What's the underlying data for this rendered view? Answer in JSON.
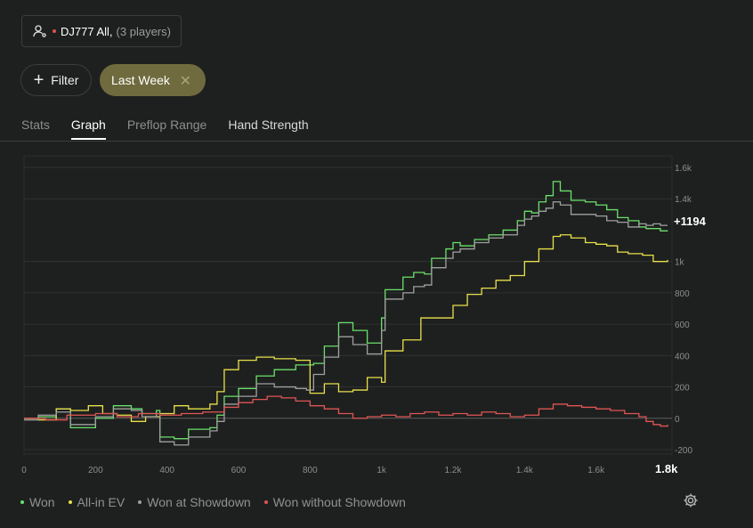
{
  "player": {
    "name": "DJ777 All,",
    "count": "(3 players)",
    "icon": "user-settings-icon",
    "dot_color": "#d9534f"
  },
  "filter": {
    "plus": "+",
    "label": "Filter"
  },
  "date_chip": {
    "label": "Last Week",
    "close": "✕",
    "color": "#6f6b3e"
  },
  "tabs": [
    "Stats",
    "Graph",
    "Preflop Range",
    "Hand Strength"
  ],
  "legend": [
    {
      "label": "Won",
      "color": "#6be06b"
    },
    {
      "label": "All-in EV",
      "color": "#e8e04a"
    },
    {
      "label": "Won at Showdown",
      "color": "#a0a0a0"
    },
    {
      "label": "Won without Showdown",
      "color": "#e05555"
    }
  ],
  "chart_data": {
    "type": "line",
    "xlim": [
      0,
      1800
    ],
    "ylim": [
      -200,
      1600
    ],
    "x_ticks": [
      "0",
      "200",
      "400",
      "600",
      "800",
      "1k",
      "1.2k",
      "1.4k",
      "1.6k"
    ],
    "x_end_label": "1.8k",
    "y_ticks": [
      "1.6k",
      "1.4k",
      "1k",
      "800",
      "600",
      "400",
      "200",
      "0",
      "-200"
    ],
    "end_value_label": "+1194",
    "grid": true,
    "series": [
      {
        "name": "Won",
        "color": "#6be06b",
        "x": [
          0,
          40,
          90,
          130,
          200,
          250,
          300,
          330,
          370,
          380,
          420,
          460,
          520,
          540,
          560,
          600,
          650,
          700,
          760,
          790,
          810,
          840,
          880,
          920,
          960,
          1000,
          1010,
          1060,
          1090,
          1120,
          1140,
          1180,
          1200,
          1220,
          1260,
          1300,
          1340,
          1380,
          1400,
          1420,
          1440,
          1460,
          1480,
          1500,
          1530,
          1570,
          1600,
          1630,
          1660,
          1690,
          1720,
          1740,
          1760,
          1780,
          1800
        ],
        "y": [
          0,
          10,
          60,
          -60,
          0,
          80,
          60,
          30,
          50,
          -120,
          -130,
          -70,
          -60,
          20,
          140,
          190,
          270,
          310,
          340,
          340,
          350,
          460,
          610,
          560,
          480,
          640,
          820,
          900,
          930,
          920,
          1020,
          1080,
          1120,
          1100,
          1140,
          1170,
          1200,
          1260,
          1320,
          1310,
          1380,
          1420,
          1510,
          1450,
          1390,
          1380,
          1360,
          1330,
          1280,
          1260,
          1220,
          1210,
          1210,
          1195,
          1194
        ]
      },
      {
        "name": "All-in EV",
        "color": "#e8e04a",
        "x": [
          0,
          40,
          90,
          130,
          180,
          220,
          260,
          300,
          340,
          380,
          420,
          460,
          520,
          540,
          560,
          600,
          650,
          700,
          760,
          800,
          840,
          880,
          920,
          960,
          1000,
          1010,
          1060,
          1110,
          1160,
          1200,
          1240,
          1280,
          1320,
          1360,
          1400,
          1440,
          1480,
          1500,
          1530,
          1570,
          1600,
          1630,
          1660,
          1690,
          1730,
          1760,
          1780,
          1800
        ],
        "y": [
          0,
          -10,
          60,
          50,
          80,
          30,
          20,
          -20,
          10,
          30,
          80,
          60,
          90,
          170,
          310,
          370,
          390,
          380,
          370,
          160,
          220,
          170,
          180,
          260,
          230,
          430,
          500,
          640,
          640,
          720,
          790,
          830,
          880,
          910,
          1000,
          1080,
          1160,
          1170,
          1150,
          1120,
          1110,
          1100,
          1060,
          1050,
          1040,
          1000,
          1000,
          1010
        ]
      },
      {
        "name": "Won at Showdown",
        "color": "#a0a0a0",
        "x": [
          0,
          40,
          90,
          130,
          200,
          250,
          300,
          330,
          370,
          380,
          420,
          460,
          520,
          540,
          560,
          600,
          650,
          700,
          760,
          790,
          810,
          840,
          880,
          920,
          960,
          1000,
          1010,
          1060,
          1090,
          1120,
          1140,
          1180,
          1200,
          1220,
          1260,
          1300,
          1340,
          1380,
          1400,
          1420,
          1440,
          1460,
          1480,
          1500,
          1530,
          1570,
          1600,
          1630,
          1660,
          1690,
          1720,
          1740,
          1760,
          1780,
          1800
        ],
        "y": [
          -10,
          20,
          40,
          -40,
          10,
          60,
          50,
          10,
          30,
          -150,
          -170,
          -120,
          -80,
          -20,
          90,
          140,
          220,
          200,
          190,
          180,
          280,
          390,
          520,
          470,
          410,
          560,
          760,
          800,
          840,
          850,
          960,
          1020,
          1060,
          1080,
          1120,
          1150,
          1170,
          1230,
          1270,
          1290,
          1320,
          1340,
          1380,
          1360,
          1300,
          1300,
          1290,
          1260,
          1250,
          1220,
          1240,
          1230,
          1240,
          1230,
          1230
        ]
      },
      {
        "name": "Won without Showdown",
        "color": "#e05555",
        "x": [
          0,
          60,
          120,
          200,
          260,
          320,
          380,
          440,
          500,
          560,
          600,
          640,
          680,
          720,
          760,
          800,
          840,
          880,
          920,
          960,
          1000,
          1040,
          1080,
          1120,
          1160,
          1200,
          1240,
          1280,
          1320,
          1360,
          1400,
          1440,
          1480,
          1520,
          1560,
          1600,
          1640,
          1680,
          1720,
          1740,
          1760,
          1780,
          1800
        ],
        "y": [
          0,
          -10,
          20,
          30,
          10,
          30,
          20,
          30,
          40,
          70,
          100,
          120,
          140,
          130,
          110,
          80,
          60,
          30,
          0,
          10,
          20,
          10,
          30,
          40,
          20,
          30,
          20,
          40,
          30,
          10,
          20,
          60,
          90,
          80,
          70,
          60,
          50,
          30,
          10,
          -20,
          -40,
          -50,
          -40
        ]
      }
    ]
  }
}
